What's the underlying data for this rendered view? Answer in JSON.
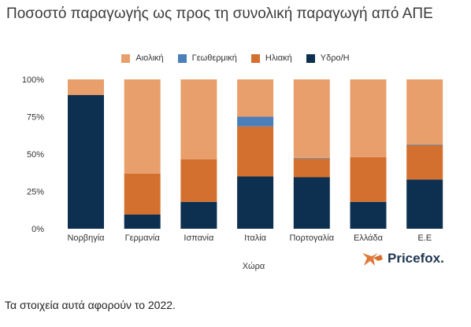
{
  "chart_data": {
    "type": "bar",
    "stacked": true,
    "title": "Ποσοστό παραγωγής ως προς τη συνολική παραγωγή από ΑΠΕ",
    "xlabel": "Χώρα",
    "ylabel": "",
    "ylim": [
      0,
      100
    ],
    "yticks": [
      "0%",
      "25%",
      "50%",
      "75%",
      "100%"
    ],
    "legend_position": "top",
    "categories": [
      "Νορβηγία",
      "Γερμανία",
      "Ισπανία",
      "Ιταλία",
      "Πορτογαλία",
      "Ελλάδα",
      "Ε.Ε"
    ],
    "series": [
      {
        "name": "Υδρο/Η",
        "color": "#0d3050",
        "values": [
          89.5,
          9.5,
          18,
          35,
          34.5,
          18,
          33
        ]
      },
      {
        "name": "Ηλιακή",
        "color": "#d4702f",
        "values": [
          0.2,
          27.5,
          28.5,
          33.5,
          12.5,
          30,
          23
        ]
      },
      {
        "name": "Γεωθερμική",
        "color": "#4a7fb9",
        "values": [
          0,
          0,
          0,
          6.5,
          0.5,
          0,
          0.5
        ]
      },
      {
        "name": "Αιολική",
        "color": "#e99f6c",
        "values": [
          10.3,
          63,
          53.5,
          25,
          52.5,
          52,
          43.5
        ]
      }
    ],
    "legend_order": [
      "Αιολική",
      "Γεωθερμική",
      "Ηλιακή",
      "Υδρο/Η"
    ],
    "grid": false
  },
  "brand": {
    "name": "Pricefox."
  },
  "footnote": "Τα στοιχεία αυτά αφορούν το 2022."
}
